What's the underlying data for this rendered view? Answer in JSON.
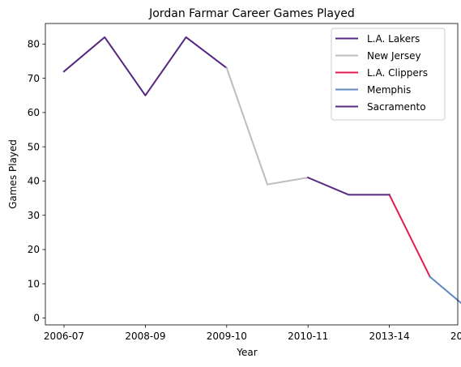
{
  "chart_data": {
    "type": "line",
    "title": "Jordan Farmar Career Games Played",
    "xlabel": "Year",
    "ylabel": "Games Played",
    "x_tick_labels": [
      "2006-07",
      "2008-09",
      "2009-10",
      "2010-11",
      "2013-14",
      "2015-16",
      "2016-17"
    ],
    "ylim": [
      -2,
      86
    ],
    "y_ticks": [
      0,
      10,
      20,
      30,
      40,
      50,
      60,
      70,
      80
    ],
    "grid": false,
    "legend_position": "top-right",
    "series": [
      {
        "name": "L.A. Lakers",
        "color": "#552583",
        "x": [
          0,
          1,
          2,
          3,
          4
        ],
        "y": [
          72,
          82,
          65,
          82,
          73
        ]
      },
      {
        "name": "New Jersey",
        "color": "#bdbdbd",
        "x": [
          4,
          5,
          6
        ],
        "y": [
          73,
          39,
          41
        ]
      },
      {
        "name": "L.A. Clippers",
        "color": "#e31b4e",
        "x": [
          8,
          9
        ],
        "y": [
          36,
          12
        ]
      },
      {
        "name": "Memphis",
        "color": "#5d89bf",
        "x": [
          9,
          10
        ],
        "y": [
          12,
          2
        ]
      },
      {
        "name": "Sacramento",
        "color": "#5a2a82",
        "x": [
          6,
          7,
          8
        ],
        "y": [
          41,
          36,
          36
        ]
      }
    ]
  }
}
